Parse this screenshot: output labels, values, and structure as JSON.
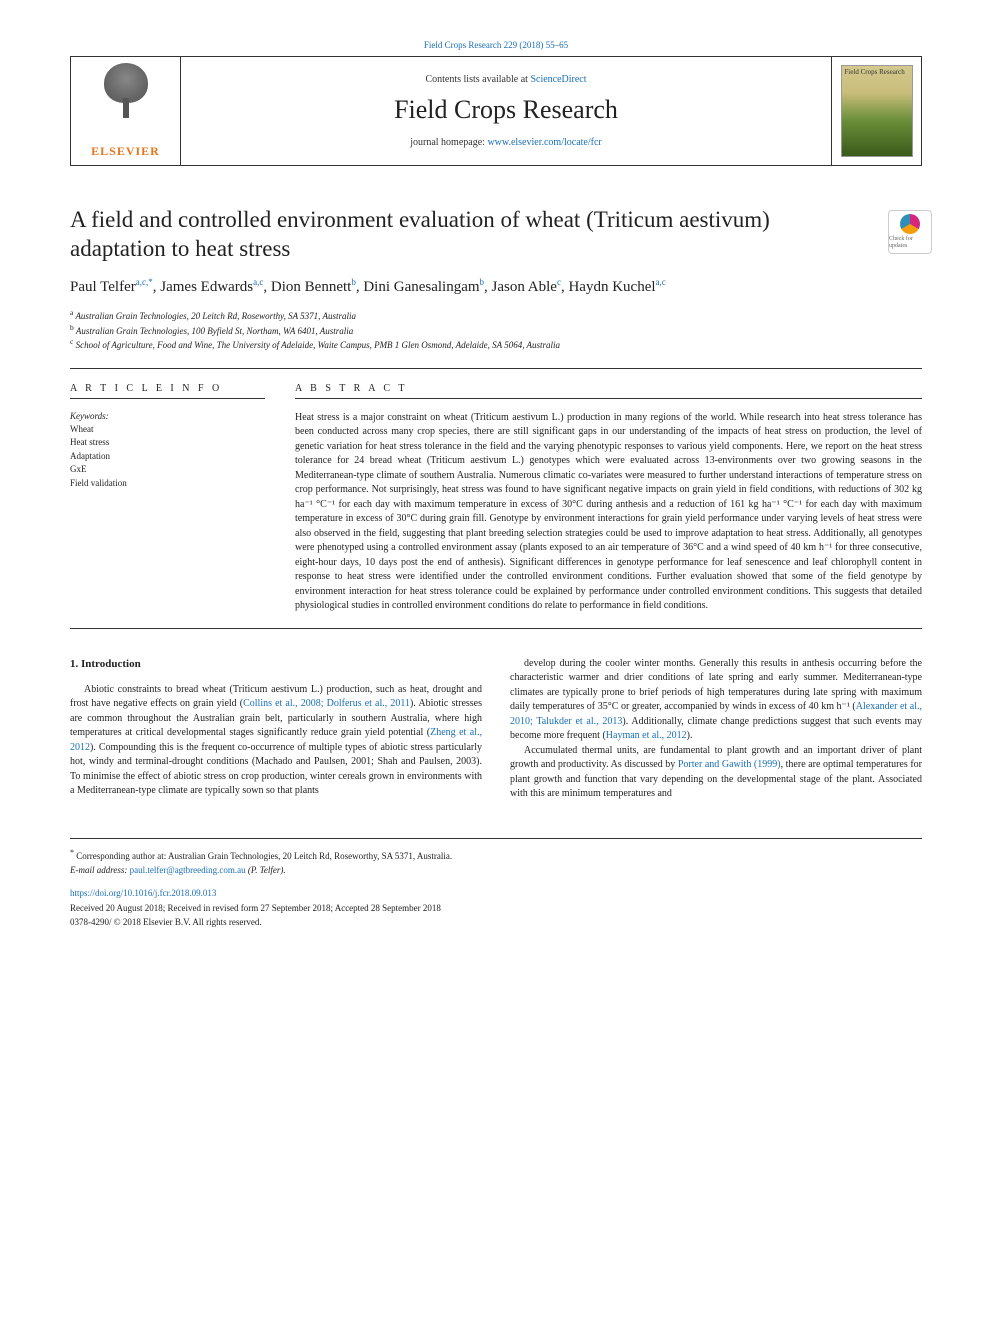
{
  "top_link": "Field Crops Research 229 (2018) 55–65",
  "header": {
    "contents_prefix": "Contents lists available at ",
    "contents_link": "ScienceDirect",
    "journal_name": "Field Crops Research",
    "homepage_prefix": "journal homepage: ",
    "homepage_link": "www.elsevier.com/locate/fcr",
    "elsevier": "ELSEVIER",
    "cover_text": "Field Crops Research"
  },
  "title": "A field and controlled environment evaluation of wheat (Triticum aestivum) adaptation to heat stress",
  "check_updates": "Check for updates",
  "authors_html": "Paul Telfer<sup>a,c,*</sup>, James Edwards<sup>a,c</sup>, Dion Bennett<sup>b</sup>, Dini Ganesalingam<sup>b</sup>, Jason Able<sup>c</sup>, Haydn Kuchel<sup>a,c</sup>",
  "affiliations": {
    "a": "Australian Grain Technologies, 20 Leitch Rd, Roseworthy, SA 5371, Australia",
    "b": "Australian Grain Technologies, 100 Byfield St, Northam, WA 6401, Australia",
    "c": "School of Agriculture, Food and Wine, The University of Adelaide, Waite Campus, PMB 1 Glen Osmond, Adelaide, SA 5064, Australia"
  },
  "article_info": {
    "heading": "A R T I C L E  I N F O",
    "keywords_label": "Keywords:",
    "keywords": [
      "Wheat",
      "Heat stress",
      "Adaptation",
      "GxE",
      "Field validation"
    ]
  },
  "abstract": {
    "heading": "A B S T R A C T",
    "text": "Heat stress is a major constraint on wheat (Triticum aestivum L.) production in many regions of the world. While research into heat stress tolerance has been conducted across many crop species, there are still significant gaps in our understanding of the impacts of heat stress on production, the level of genetic variation for heat stress tolerance in the field and the varying phenotypic responses to various yield components. Here, we report on the heat stress tolerance for 24 bread wheat (Triticum aestivum L.) genotypes which were evaluated across 13-environments over two growing seasons in the Mediterranean-type climate of southern Australia. Numerous climatic co-variates were measured to further understand interactions of temperature stress on crop performance. Not surprisingly, heat stress was found to have significant negative impacts on grain yield in field conditions, with reductions of 302 kg ha⁻¹ °C⁻¹ for each day with maximum temperature in excess of 30°C during anthesis and a reduction of 161 kg ha⁻¹ °C⁻¹ for each day with maximum temperature in excess of 30°C during grain fill. Genotype by environment interactions for grain yield performance under varying levels of heat stress were also observed in the field, suggesting that plant breeding selection strategies could be used to improve adaptation to heat stress. Additionally, all genotypes were phenotyped using a controlled environment assay (plants exposed to an air temperature of 36°C and a wind speed of 40 km h⁻¹ for three consecutive, eight-hour days, 10 days post the end of anthesis). Significant differences in genotype performance for leaf senescence and leaf chlorophyll content in response to heat stress were identified under the controlled environment conditions. Further evaluation showed that some of the field genotype by environment interaction for heat stress tolerance could be explained by performance under controlled environment conditions. This suggests that detailed physiological studies in controlled environment conditions do relate to performance in field conditions."
  },
  "intro": {
    "heading": "1. Introduction",
    "col1_p1": "Abiotic constraints to bread wheat (Triticum aestivum L.) production, such as heat, drought and frost have negative effects on grain yield (Collins et al., 2008; Dolferus et al., 2011). Abiotic stresses are common throughout the Australian grain belt, particularly in southern Australia, where high temperatures at critical developmental stages significantly reduce grain yield potential (Zheng et al., 2012). Compounding this is the frequent co-occurrence of multiple types of abiotic stress particularly hot, windy and terminal-drought conditions (Machado and Paulsen, 2001; Shah and Paulsen, 2003). To minimise the effect of abiotic stress on crop production, winter cereals grown in environments with a Mediterranean-type climate are typically sown so that plants",
    "col2_p1": "develop during the cooler winter months. Generally this results in anthesis occurring before the characteristic warmer and drier conditions of late spring and early summer. Mediterranean-type climates are typically prone to brief periods of high temperatures during late spring with maximum daily temperatures of 35°C or greater, accompanied by winds in excess of 40 km h⁻¹ (Alexander et al., 2010; Talukder et al., 2013). Additionally, climate change predictions suggest that such events may become more frequent (Hayman et al., 2012).",
    "col2_p2": "Accumulated thermal units, are fundamental to plant growth and an important driver of plant growth and productivity. As discussed by Porter and Gawith (1999), there are optimal temperatures for plant growth and function that vary depending on the developmental stage of the plant. Associated with this are minimum temperatures and"
  },
  "footer": {
    "corresponding": "Corresponding author at: Australian Grain Technologies, 20 Leitch Rd, Roseworthy, SA 5371, Australia.",
    "email_label": "E-mail address: ",
    "email": "paul.telfer@agtbreeding.com.au",
    "email_suffix": " (P. Telfer).",
    "doi": "https://doi.org/10.1016/j.fcr.2018.09.013",
    "received": "Received 20 August 2018; Received in revised form 27 September 2018; Accepted 28 September 2018",
    "issn": "0378-4290/ © 2018 Elsevier B.V. All rights reserved."
  },
  "colors": {
    "link": "#1a6eb8",
    "elsevier_orange": "#e8751a",
    "text": "#222222",
    "border": "#333333"
  },
  "typography": {
    "body_fontsize": 10,
    "title_fontsize": 23,
    "journal_fontsize": 26,
    "authors_fontsize": 15,
    "affil_fontsize": 9,
    "footer_fontsize": 9
  }
}
